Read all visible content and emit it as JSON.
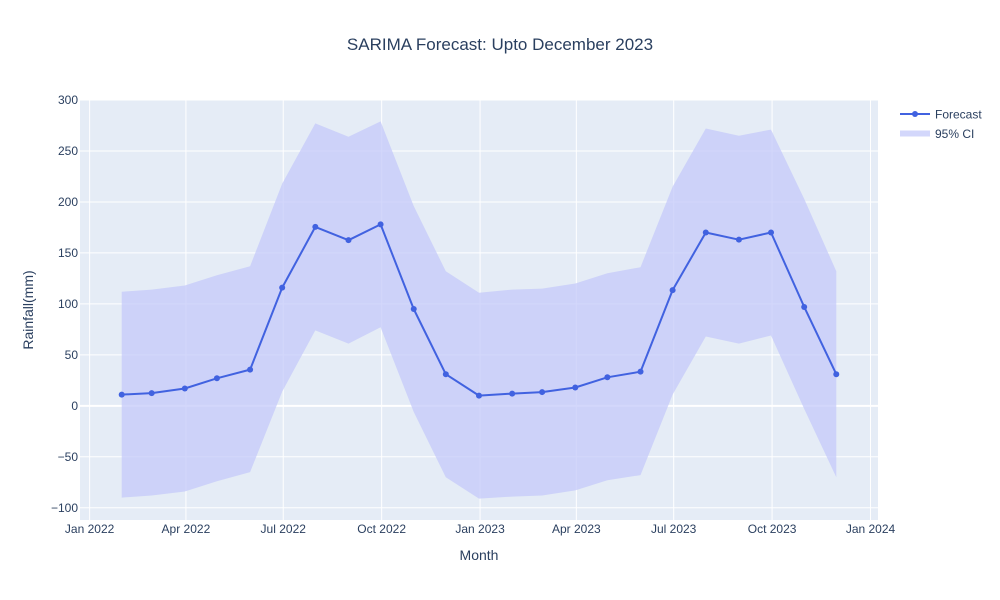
{
  "chart_data": {
    "type": "line",
    "title": "SARIMA Forecast: Upto December 2023",
    "xlabel": "Month",
    "ylabel": "Rainfall(mm)",
    "xlim": [
      "2021-12-23",
      "2024-01-08"
    ],
    "ylim": [
      -112,
      300
    ],
    "x_ticks": [
      "2022-01-01",
      "2022-04-01",
      "2022-07-01",
      "2022-10-01",
      "2023-01-01",
      "2023-04-01",
      "2023-07-01",
      "2023-10-01",
      "2024-01-01"
    ],
    "x_tick_labels": [
      "Jan 2022",
      "Apr 2022",
      "Jul 2022",
      "Oct 2022",
      "Jan 2023",
      "Apr 2023",
      "Jul 2023",
      "Oct 2023",
      "Jan 2024"
    ],
    "y_ticks": [
      300,
      250,
      200,
      150,
      100,
      50,
      0,
      -50,
      -100
    ],
    "y_tick_labels": [
      "300",
      "250",
      "200",
      "150",
      "100",
      "50",
      "0",
      "−50",
      "−100"
    ],
    "grid": true,
    "legend_position": "top-right",
    "x": [
      "2022-01-31",
      "2022-02-28",
      "2022-03-31",
      "2022-04-30",
      "2022-05-31",
      "2022-06-30",
      "2022-07-31",
      "2022-08-31",
      "2022-09-30",
      "2022-10-31",
      "2022-11-30",
      "2022-12-31",
      "2023-01-31",
      "2023-02-28",
      "2023-03-31",
      "2023-04-30",
      "2023-05-31",
      "2023-06-30",
      "2023-07-31",
      "2023-08-31",
      "2023-09-30",
      "2023-10-31",
      "2023-11-30"
    ],
    "series": [
      {
        "name": "Forecast",
        "type": "line",
        "values": [
          11,
          12.5,
          17,
          27,
          35.5,
          116,
          175.5,
          162.5,
          178,
          95,
          31,
          10,
          12,
          13.5,
          18,
          28,
          33.5,
          113.5,
          170,
          163,
          170,
          97,
          31
        ]
      },
      {
        "name": "95% CI",
        "type": "band",
        "upper": [
          112,
          114,
          118,
          128,
          137,
          218,
          277,
          264,
          279,
          196,
          132,
          111,
          114,
          115,
          120,
          130,
          136,
          215,
          272,
          265,
          271,
          203,
          132
        ],
        "lower": [
          -90,
          -88,
          -84,
          -74,
          -65,
          14,
          74,
          61,
          77,
          -6,
          -70,
          -91,
          -89,
          -88,
          -83,
          -73,
          -68,
          11,
          68,
          61,
          69,
          -3,
          -70
        ]
      }
    ]
  },
  "colors": {
    "plot_background": "#E5ECF6",
    "grid": "#ffffff",
    "forecast_line": "#4162E0",
    "ci_fill": "#C4CAFA",
    "ci_fill_opacity": 0.75,
    "text": "#2a3f5f"
  }
}
